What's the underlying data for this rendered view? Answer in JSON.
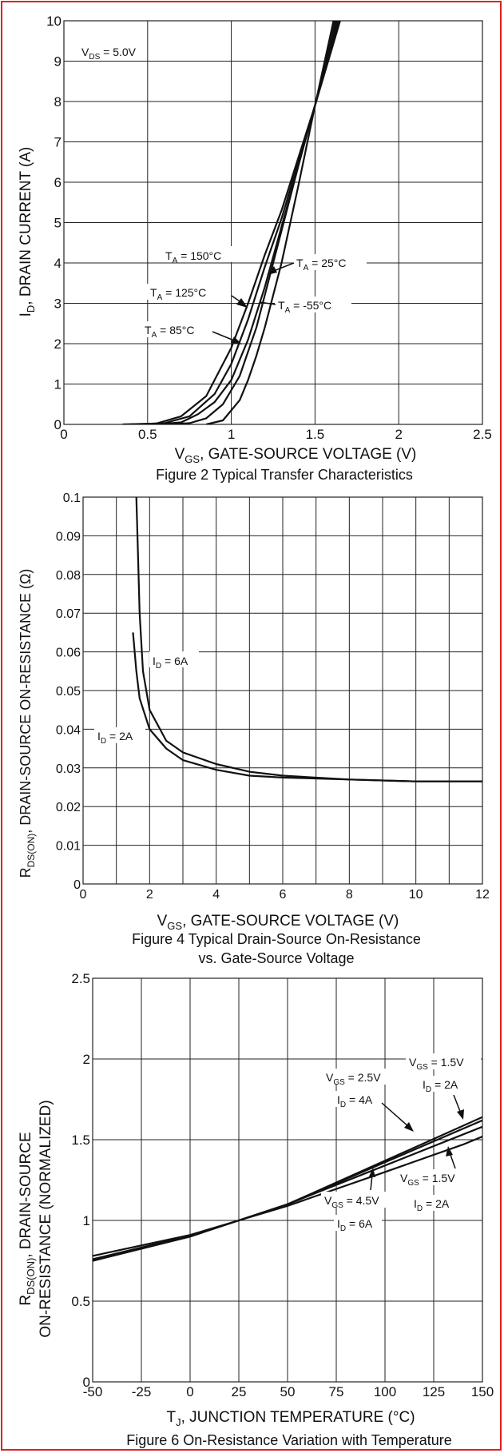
{
  "colors": {
    "border": "#e02020",
    "grid": "#222222",
    "curve": "#111111"
  },
  "chart_data": [
    {
      "type": "line",
      "caption": "Figure 2 Typical Transfer Characteristics",
      "xlabel": "V_GS, GATE-SOURCE VOLTAGE (V)",
      "ylabel": "I_D, DRAIN CURRENT (A)",
      "xlim": [
        0,
        2.5
      ],
      "ylim": [
        0,
        10
      ],
      "xticks": [
        "0",
        "0.5",
        "1",
        "1.5",
        "2",
        "2.5"
      ],
      "yticks": [
        "0",
        "1",
        "2",
        "3",
        "4",
        "5",
        "6",
        "7",
        "8",
        "9",
        "10"
      ],
      "grid": true,
      "condition": "V_DS = 5.0V",
      "series": [
        {
          "name": "T_A = 150°C",
          "points": [
            [
              0.35,
              0
            ],
            [
              0.55,
              0.02
            ],
            [
              0.7,
              0.2
            ],
            [
              0.85,
              0.7
            ],
            [
              1.0,
              1.9
            ],
            [
              1.1,
              3.0
            ],
            [
              1.2,
              4.2
            ],
            [
              1.3,
              5.3
            ],
            [
              1.4,
              6.6
            ],
            [
              1.5,
              7.9
            ],
            [
              1.6,
              9.3
            ],
            [
              1.65,
              10
            ]
          ]
        },
        {
          "name": "T_A = 125°C",
          "points": [
            [
              0.4,
              0
            ],
            [
              0.6,
              0.03
            ],
            [
              0.75,
              0.2
            ],
            [
              0.9,
              0.75
            ],
            [
              1.0,
              1.5
            ],
            [
              1.1,
              2.6
            ],
            [
              1.2,
              3.9
            ],
            [
              1.3,
              5.1
            ],
            [
              1.4,
              6.5
            ],
            [
              1.5,
              7.9
            ],
            [
              1.6,
              9.4
            ],
            [
              1.64,
              10
            ]
          ]
        },
        {
          "name": "T_A = 85°C",
          "points": [
            [
              0.55,
              0
            ],
            [
              0.7,
              0.05
            ],
            [
              0.8,
              0.25
            ],
            [
              0.9,
              0.55
            ],
            [
              1.0,
              1.1
            ],
            [
              1.1,
              2.1
            ],
            [
              1.2,
              3.4
            ],
            [
              1.3,
              4.9
            ],
            [
              1.4,
              6.4
            ],
            [
              1.5,
              7.9
            ],
            [
              1.6,
              9.5
            ],
            [
              1.63,
              10
            ]
          ]
        },
        {
          "name": "T_A = 25°C",
          "points": [
            [
              0.6,
              0
            ],
            [
              0.75,
              0.03
            ],
            [
              0.85,
              0.15
            ],
            [
              0.95,
              0.5
            ],
            [
              1.05,
              1.2
            ],
            [
              1.15,
              2.4
            ],
            [
              1.25,
              4.0
            ],
            [
              1.35,
              5.6
            ],
            [
              1.45,
              7.2
            ],
            [
              1.5,
              7.9
            ],
            [
              1.6,
              9.6
            ],
            [
              1.62,
              10
            ]
          ]
        },
        {
          "name": "T_A = -55°C",
          "points": [
            [
              0.85,
              0
            ],
            [
              0.95,
              0.1
            ],
            [
              1.05,
              0.6
            ],
            [
              1.1,
              1.1
            ],
            [
              1.15,
              1.7
            ],
            [
              1.2,
              2.4
            ],
            [
              1.3,
              4.0
            ],
            [
              1.4,
              5.9
            ],
            [
              1.5,
              7.9
            ],
            [
              1.6,
              9.8
            ],
            [
              1.61,
              10
            ]
          ]
        }
      ]
    },
    {
      "type": "line",
      "caption_lines": [
        "Figure 4 Typical Drain-Source On-Resistance",
        "vs. Gate-Source Voltage"
      ],
      "xlabel": "V_GS, GATE-SOURCE VOLTAGE (V)",
      "ylabel": "R_DS(ON), DRAIN-SOURCE ON-RESISTANCE (Ω)",
      "xlim": [
        0,
        12
      ],
      "ylim": [
        0,
        0.1
      ],
      "xticks": [
        "0",
        "2",
        "4",
        "6",
        "8",
        "10",
        "12"
      ],
      "yticks": [
        "0",
        "0.01",
        "0.02",
        "0.03",
        "0.04",
        "0.05",
        "0.06",
        "0.07",
        "0.08",
        "0.09",
        "0.1"
      ],
      "xgrid_step": 1,
      "grid": true,
      "series": [
        {
          "name": "I_D = 6A",
          "points": [
            [
              1.6,
              0.1
            ],
            [
              1.65,
              0.085
            ],
            [
              1.7,
              0.07
            ],
            [
              1.8,
              0.055
            ],
            [
              2.0,
              0.045
            ],
            [
              2.5,
              0.037
            ],
            [
              3,
              0.034
            ],
            [
              4,
              0.031
            ],
            [
              5,
              0.029
            ],
            [
              6,
              0.028
            ],
            [
              8,
              0.027
            ],
            [
              10,
              0.0265
            ],
            [
              12,
              0.0265
            ]
          ]
        },
        {
          "name": "I_D = 2A",
          "points": [
            [
              1.5,
              0.065
            ],
            [
              1.6,
              0.055
            ],
            [
              1.7,
              0.048
            ],
            [
              2.0,
              0.04
            ],
            [
              2.5,
              0.035
            ],
            [
              3,
              0.032
            ],
            [
              4,
              0.0295
            ],
            [
              5,
              0.028
            ],
            [
              6,
              0.0275
            ],
            [
              8,
              0.027
            ],
            [
              10,
              0.0265
            ],
            [
              12,
              0.0265
            ]
          ]
        }
      ]
    },
    {
      "type": "line",
      "caption": "Figure 6 On-Resistance Variation with Temperature",
      "xlabel": "T_J, JUNCTION TEMPERATURE (°C)",
      "ylabel_lines": [
        "R_DS(ON), DRAIN-SOURCE",
        "ON-RESISTANCE (NORMALIZED)"
      ],
      "xlim": [
        -50,
        150
      ],
      "ylim": [
        0,
        2.5
      ],
      "xticks": [
        "-50",
        "-25",
        "0",
        "25",
        "50",
        "75",
        "100",
        "125",
        "150"
      ],
      "yticks": [
        "0",
        "0.5",
        "1",
        "1.5",
        "2",
        "2.5"
      ],
      "grid": true,
      "series": [
        {
          "name": "V_GS = 1.5V, I_D = 2A (upper)",
          "points": [
            [
              -50,
              0.75
            ],
            [
              0,
              0.9
            ],
            [
              25,
              1.0
            ],
            [
              50,
              1.1
            ],
            [
              100,
              1.37
            ],
            [
              150,
              1.64
            ]
          ]
        },
        {
          "name": "V_GS = 2.5V, I_D = 4A",
          "points": [
            [
              -50,
              0.75
            ],
            [
              0,
              0.9
            ],
            [
              25,
              1.0
            ],
            [
              50,
              1.1
            ],
            [
              100,
              1.36
            ],
            [
              150,
              1.62
            ]
          ]
        },
        {
          "name": "V_GS = 4.5V, I_D = 6A",
          "points": [
            [
              -50,
              0.76
            ],
            [
              0,
              0.905
            ],
            [
              25,
              1.0
            ],
            [
              50,
              1.1
            ],
            [
              100,
              1.34
            ],
            [
              150,
              1.58
            ]
          ]
        },
        {
          "name": "V_GS = 1.5V, I_D = 2A (lower)",
          "points": [
            [
              -50,
              0.78
            ],
            [
              0,
              0.91
            ],
            [
              25,
              1.0
            ],
            [
              50,
              1.09
            ],
            [
              100,
              1.3
            ],
            [
              140,
              1.47
            ],
            [
              150,
              1.52
            ]
          ]
        }
      ]
    }
  ],
  "labels": {
    "c1": {
      "ylabel_main": "I",
      "ylabel_sub": "D",
      "ylabel_rest": ", DRAIN CURRENT (A)",
      "xlabel_main": "V",
      "xlabel_sub": "GS",
      "xlabel_rest": ", GATE-SOURCE VOLTAGE (V)",
      "vds_main": "V",
      "vds_sub": "DS",
      "vds_rest": " = 5.0V",
      "ta_main": "T",
      "ta_sub": "A",
      "t150": " = 150°C",
      "t125": " = 125°C",
      "t85": " = 85°C",
      "t25": " = 25°C",
      "tm55": " = -55°C"
    },
    "c2": {
      "ylabel_main": "R",
      "ylabel_sub": "DS(ON)",
      "ylabel_rest": ", DRAIN-SOURCE ON-RESISTANCE (Ω)",
      "xlabel_main": "V",
      "xlabel_sub": "GS",
      "xlabel_rest": ", GATE-SOURCE VOLTAGE (V)",
      "id_main": "I",
      "id_sub": "D",
      "id6": " = 6A",
      "id2": " = 2A"
    },
    "c3": {
      "ylabel1_main": "R",
      "ylabel1_sub": "DS(ON)",
      "ylabel1_rest": ", DRAIN-SOURCE",
      "ylabel2": "ON-RESISTANCE (NORMALIZED)",
      "xlabel_main": "T",
      "xlabel_sub": "J",
      "xlabel_rest": ", JUNCTION TEMPERATURE (°C)",
      "v_main": "V",
      "v_sub": "GS",
      "i_main": "I",
      "i_sub": "D",
      "v15": " = 1.5V",
      "v25": " = 2.5V",
      "v45": " = 4.5V",
      "i2": " = 2A",
      "i4": " = 4A",
      "i6": " = 6A"
    }
  }
}
